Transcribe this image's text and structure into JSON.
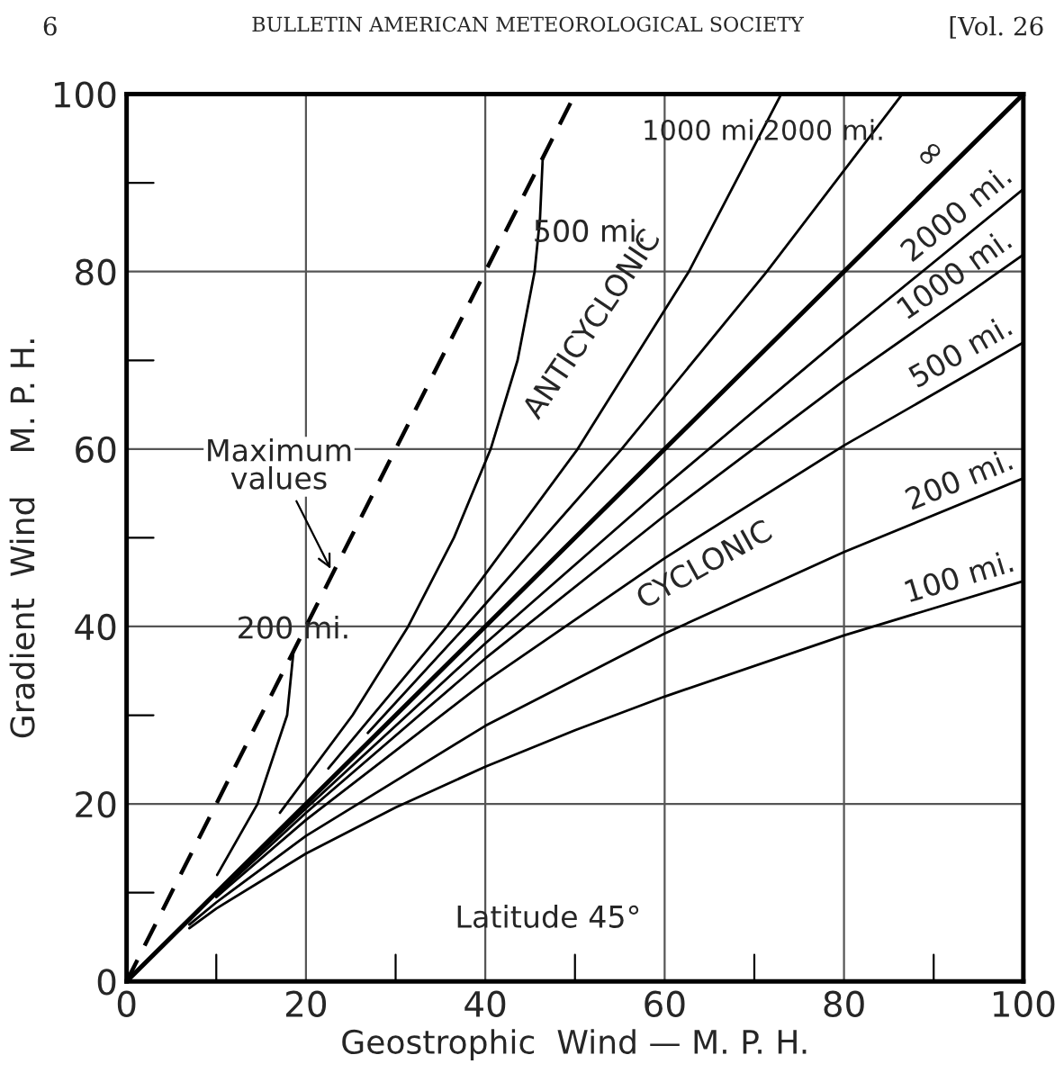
{
  "chart_data": {
    "type": "line",
    "xlabel": "Geostrophic  Wind — M. P. H.",
    "ylabel": "Gradient  Wind    M. P. H.",
    "xlim": [
      0,
      100
    ],
    "ylim": [
      0,
      100
    ],
    "xticks": [
      0,
      {
        "value": 10,
        "label": null
      },
      20,
      {
        "value": 30,
        "label": null
      },
      40,
      {
        "value": 50,
        "label": null
      },
      60,
      {
        "value": 70,
        "label": null
      },
      80,
      {
        "value": 90,
        "label": null
      },
      100
    ],
    "yticks": [
      0,
      {
        "value": 10,
        "label": null
      },
      20,
      {
        "value": 30,
        "label": null
      },
      40,
      {
        "value": 50,
        "label": null
      },
      60,
      {
        "value": 70,
        "label": null
      },
      80,
      {
        "value": 90,
        "label": null
      },
      100
    ],
    "grid": true,
    "marker": "none",
    "series": [
      {
        "color": "#000000",
        "line_style": "dashed",
        "x": [
          0,
          50
        ],
        "values": [
          0,
          100
        ]
      },
      {
        "name": "200 mi.",
        "color": "#000000",
        "x": [
          10.1,
          14.6,
          17.9,
          18.6
        ],
        "values": [
          12,
          20,
          30,
          37.1
        ]
      },
      {
        "name": "500 mi.",
        "color": "#000000",
        "x": [
          17.1,
          25.2,
          31.4,
          36.5,
          40.6,
          43.6,
          45.5,
          46.1,
          46.4
        ],
        "values": [
          19,
          30,
          40,
          50,
          60,
          70,
          80,
          86,
          92.7
        ]
      },
      {
        "name": "1000 mi.",
        "color": "#000000",
        "x": [
          22.5,
          35.7,
          50.3,
          62.7,
          73.0
        ],
        "values": [
          24,
          40,
          60,
          80,
          100
        ]
      },
      {
        "name": "2000 mi.",
        "color": "#000000",
        "x": [
          26.9,
          37.8,
          55.2,
          71.4,
          86.5
        ],
        "values": [
          28,
          40,
          60,
          80,
          100
        ]
      },
      {
        "name": "∞",
        "color": "#000000",
        "x": [
          0,
          100
        ],
        "values": [
          0,
          100
        ]
      },
      {
        "name": "2000 mi.",
        "color": "#000000",
        "x": [
          10,
          20,
          40,
          60,
          80,
          100
        ],
        "values": [
          9.9,
          19.5,
          38.1,
          55.8,
          72.8,
          89.3
        ]
      },
      {
        "name": "1000 mi.",
        "color": "#000000",
        "x": [
          10,
          20,
          40,
          60,
          80,
          100
        ],
        "values": [
          9.7,
          19.0,
          36.4,
          52.5,
          67.7,
          81.9
        ]
      },
      {
        "name": "500 mi.",
        "color": "#000000",
        "x": [
          10,
          20,
          40,
          60,
          80,
          100
        ],
        "values": [
          9.5,
          18.2,
          33.8,
          47.7,
          60.4,
          72.0
        ]
      },
      {
        "name": "200 mi.",
        "color": "#000000",
        "x": [
          7,
          10,
          20,
          40,
          60,
          80,
          100
        ],
        "values": [
          6.4,
          8.9,
          16.4,
          28.8,
          39.2,
          48.4,
          56.7
        ]
      },
      {
        "name": "100 mi.",
        "color": "#000000",
        "x": [
          7,
          10,
          20,
          30,
          40,
          50,
          60,
          80,
          100
        ],
        "values": [
          6.0,
          8.2,
          14.4,
          19.6,
          24.2,
          28.3,
          32.1,
          39.0,
          45.1
        ]
      }
    ],
    "annotations": [
      "6",
      "BULLETIN AMERICAN METEOROLOGICAL SOCIETY",
      "[Vol. 26",
      {
        "text": "Maximum\nvalues",
        "x": 23,
        "y": 46
      },
      "ANTICYCLONIC",
      "CYCLONIC",
      "Latitude 45°"
    ]
  }
}
